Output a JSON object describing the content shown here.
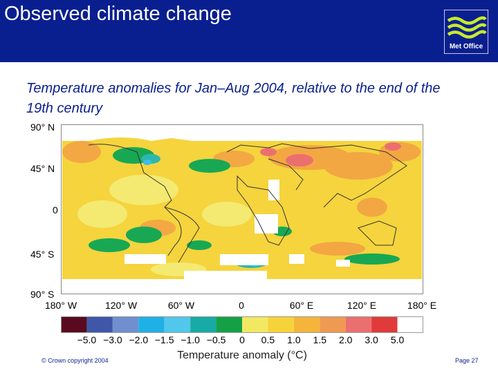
{
  "header": {
    "title": "Observed climate change",
    "logo_text": "Met Office"
  },
  "subtitle": "Temperature anomalies for Jan–Aug 2004, relative to the end of the 19th century",
  "map": {
    "lat_labels": [
      "90° N",
      "45° N",
      "0",
      "45° S",
      "90° S"
    ],
    "lon_labels": [
      "180° W",
      "120° W",
      "60° W",
      "0",
      "60° E",
      "120° E",
      "180° E"
    ]
  },
  "colorbar": {
    "colors": [
      "#5a0a1e",
      "#3f57a8",
      "#6f8fce",
      "#1fb1e6",
      "#52c7ec",
      "#18aaa5",
      "#16a046",
      "#f2e862",
      "#f7d33a",
      "#f4b53a",
      "#ef9a52",
      "#ec6f6f",
      "#e03a3a",
      "#ffffff"
    ],
    "ticks": [
      "−5.0",
      "−3.0",
      "−2.0",
      "−1.5",
      "−1.0",
      "−0.5",
      "0",
      "0.5",
      "1.0",
      "1.5",
      "2.0",
      "3.0",
      "5.0"
    ],
    "label": "Temperature anomaly (°C)"
  },
  "footer": {
    "copyright": "© Crown copyright 2004",
    "page": "Page 27"
  },
  "colors": {
    "header_bg": "#0a1f8f",
    "accent_text": "#0a1f8f"
  }
}
